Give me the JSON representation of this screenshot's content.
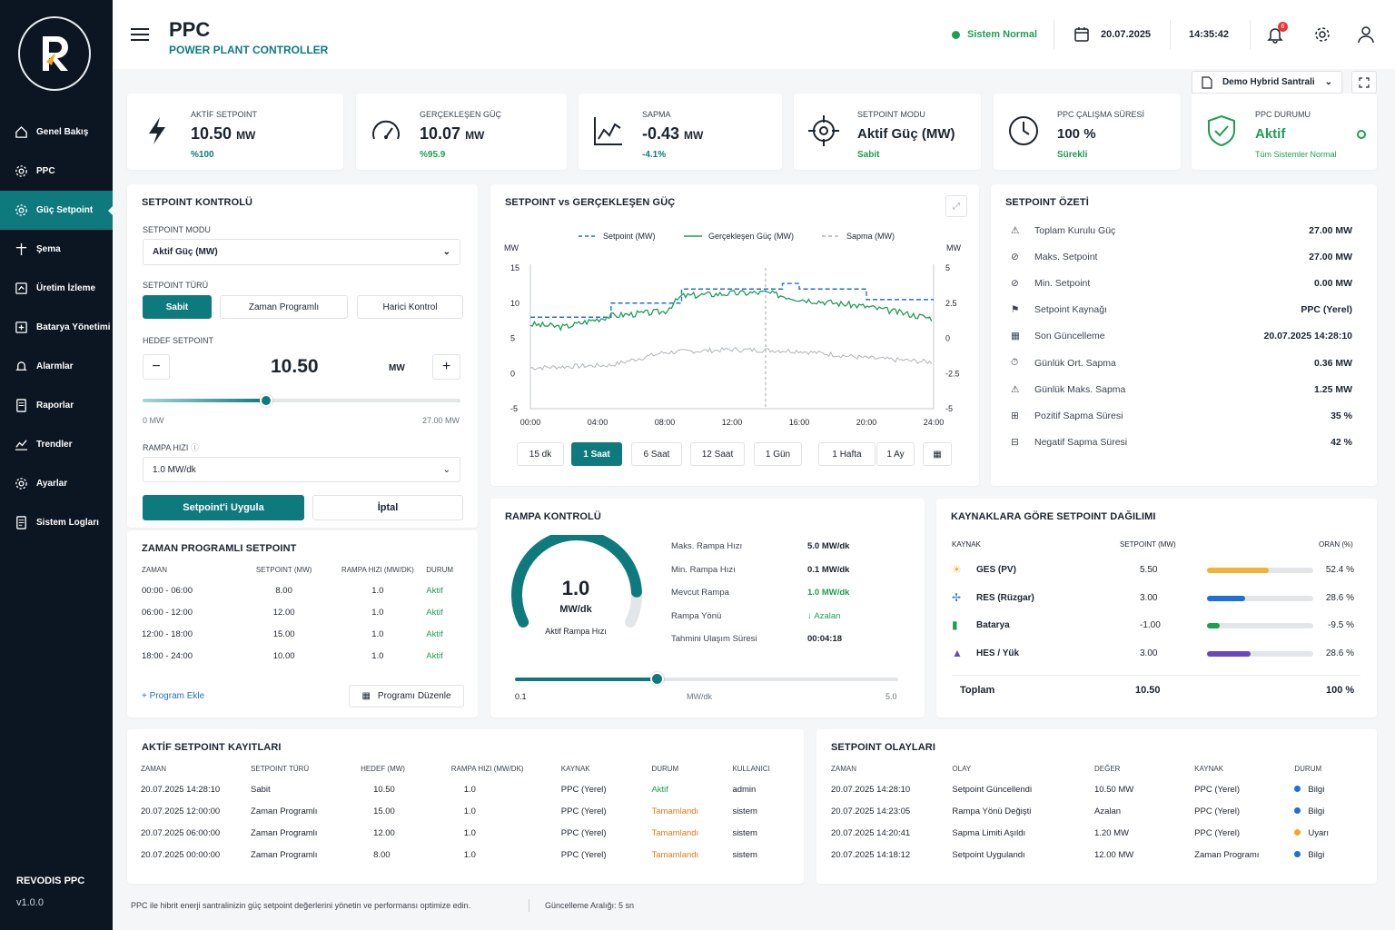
{
  "sidebar": {
    "items": [
      {
        "label": "Genel Bakış",
        "icon": "home-icon"
      },
      {
        "label": "PPC",
        "icon": "gear-icon"
      },
      {
        "label": "Güç Setpoint",
        "icon": "setpoint-icon"
      },
      {
        "label": "Şema",
        "icon": "schema-icon"
      },
      {
        "label": "Üretim İzleme",
        "icon": "monitor-icon"
      },
      {
        "label": "Batarya Yönetimi",
        "icon": "battery-icon"
      },
      {
        "label": "Alarmlar",
        "icon": "bell-icon"
      },
      {
        "label": "Raporlar",
        "icon": "report-icon"
      },
      {
        "label": "Trendler",
        "icon": "trend-icon"
      },
      {
        "label": "Ayarlar",
        "icon": "settings-icon"
      },
      {
        "label": "Sistem Logları",
        "icon": "log-icon"
      }
    ],
    "footer_name": "REVODIS PPC",
    "footer_version": "v1.0.0"
  },
  "header": {
    "title": "PPC",
    "subtitle": "POWER PLANT CONTROLLER",
    "status": "Sistem Normal",
    "date": "20.07.2025",
    "time": "14:35:42",
    "notif_count": "6",
    "plant": "Demo Hybrid Santrali"
  },
  "kpis": [
    {
      "label": "AKTİF SETPOINT",
      "value": "10.50",
      "unit": "MW",
      "sub": "%100"
    },
    {
      "label": "GERÇEKLEŞEN GÜÇ",
      "value": "10.07",
      "unit": "MW",
      "sub": "%95.9"
    },
    {
      "label": "SAPMA",
      "value": "-0.43",
      "unit": "MW",
      "sub": "-4.1%"
    },
    {
      "label": "SETPOINT MODU",
      "value": "Aktif Güç (MW)",
      "unit": "",
      "sub": "Sabit"
    },
    {
      "label": "PPC ÇALIŞMA SÜRESİ",
      "value": "100 %",
      "unit": "",
      "sub": "Sürekli"
    },
    {
      "label": "PPC DURUMU",
      "value": "Aktif",
      "unit": "",
      "sub": "Tüm Sistemler Normal"
    }
  ],
  "control": {
    "title": "SETPOINT KONTROLÜ",
    "mode_label": "SETPOINT MODU",
    "mode_value": "Aktif Güç (MW)",
    "type_label": "SETPOINT TÜRÜ",
    "types": [
      "Sabit",
      "Zaman Programlı",
      "Harici Kontrol"
    ],
    "target_label": "HEDEF SETPOINT",
    "target_value": "10.50",
    "target_unit": "MW",
    "min": "0 MW",
    "max": "27.00 MW",
    "slider_fraction": 0.389,
    "ramp_label": "RAMPA HIZI",
    "ramp_value": "1.0 MW/dk",
    "apply": "Setpoint'i Uygula",
    "cancel": "İptal"
  },
  "schedule": {
    "title": "ZAMAN PROGRAMLI SETPOINT",
    "headers": [
      "ZAMAN",
      "SETPOINT (MW)",
      "RAMPA HIZI (MW/dk)",
      "DURUM"
    ],
    "rows": [
      [
        "00:00 - 06:00",
        "8.00",
        "1.0",
        "Aktif"
      ],
      [
        "06:00 - 12:00",
        "12.00",
        "1.0",
        "Aktif"
      ],
      [
        "12:00 - 18:00",
        "15.00",
        "1.0",
        "Aktif"
      ],
      [
        "18:00 - 24:00",
        "10.00",
        "1.0",
        "Aktif"
      ]
    ],
    "add": "Program Ekle",
    "edit": "Programı Düzenle"
  },
  "chart": {
    "title": "SETPOINT vs GERÇEKLEŞEN GÜÇ",
    "legend": [
      "Setpoint (MW)",
      "Gerçekleşen Güç (MW)",
      "Sapma (MW)"
    ],
    "yleft_label": "MW",
    "yright_label": "MW",
    "yleft_ticks": [
      "15",
      "10",
      "5",
      "0",
      "-5"
    ],
    "yright_ticks": [
      "5",
      "2.5",
      "0",
      "-2.5",
      "-5"
    ],
    "x_ticks": [
      "00:00",
      "04:00",
      "08:00",
      "12:00",
      "16:00",
      "20:00",
      "24:00"
    ],
    "ranges": [
      "15 dk",
      "1 Saat",
      "6 Saat",
      "12 Saat",
      "1 Gün",
      "1 Hafta",
      "1 Ay"
    ]
  },
  "chart_data": {
    "type": "line",
    "title": "SETPOINT vs GERÇEKLEŞEN GÜÇ",
    "x": [
      "00:00",
      "04:00",
      "08:00",
      "12:00",
      "16:00",
      "20:00",
      "24:00"
    ],
    "series": [
      {
        "name": "Setpoint (MW)",
        "axis": "left",
        "steps": [
          [
            0,
            8
          ],
          [
            4.8,
            10
          ],
          [
            9,
            12
          ],
          [
            15,
            12.8
          ],
          [
            16,
            12
          ],
          [
            20,
            10.5
          ],
          [
            24,
            10.5
          ]
        ]
      },
      {
        "name": "Gerçekleşen Güç (MW)",
        "axis": "left",
        "points": [
          [
            0,
            7
          ],
          [
            2,
            6.6
          ],
          [
            4.8,
            8.2
          ],
          [
            8,
            8.8
          ],
          [
            9,
            11
          ],
          [
            12,
            11.4
          ],
          [
            14,
            11.5
          ],
          [
            16,
            10.6
          ],
          [
            20,
            9.5
          ],
          [
            24,
            7.8
          ]
        ]
      },
      {
        "name": "Sapma (MW)",
        "axis": "right",
        "points": [
          [
            0,
            -2.1
          ],
          [
            4.8,
            -1.9
          ],
          [
            8,
            -1
          ],
          [
            12,
            -0.8
          ],
          [
            16,
            -0.9
          ],
          [
            20,
            -1.4
          ],
          [
            24,
            -1.7
          ]
        ]
      }
    ],
    "ylim_left": [
      -5,
      15
    ],
    "ylim_right": [
      -5,
      5
    ]
  },
  "summary": {
    "title": "SETPOINT ÖZETİ",
    "rows": [
      [
        "Toplam Kurulu Güç",
        "27.00 MW"
      ],
      [
        "Maks. Setpoint",
        "27.00 MW"
      ],
      [
        "Min. Setpoint",
        "0.00 MW"
      ],
      [
        "Setpoint Kaynağı",
        "PPC (Yerel)"
      ],
      [
        "Son Güncelleme",
        "20.07.2025 14:28:10"
      ],
      [
        "Günlük Ort. Sapma",
        "0.36 MW"
      ],
      [
        "Günlük Maks. Sapma",
        "1.25 MW"
      ],
      [
        "Pozitif Sapma Süresi",
        "35 %"
      ],
      [
        "Negatif Sapma Süresi",
        "42 %"
      ]
    ]
  },
  "ramp": {
    "title": "RAMPA KONTROLÜ",
    "gauge_value": "1.0",
    "gauge_unit": "MW/dk",
    "gauge_label": "Aktif Rampa Hızı",
    "gauge_fraction": 0.18,
    "rows": [
      [
        "Maks. Rampa Hızı",
        "5.0 MW/dk"
      ],
      [
        "Min. Rampa Hızı",
        "0.1 MW/dk"
      ],
      [
        "Mevcut Rampa",
        "1.0 MW/dk"
      ],
      [
        "Rampa Yönü",
        "Azalan"
      ],
      [
        "Tahmini Ulaşım Süresi",
        "00:04:18"
      ]
    ],
    "min": "0.1",
    "unit": "MW/dk",
    "max": "5.0",
    "slider_fraction": 0.37
  },
  "sources": {
    "title": "KAYNAKLARA GÖRE SETPOINT DAĞILIMI",
    "headers": [
      "KAYNAK",
      "SETPOINT (MW)",
      "ORAN (%)"
    ],
    "rows": [
      {
        "name": "GES (PV)",
        "value": "5.50",
        "pct": "52.4 %",
        "frac": 0.58,
        "color": "#f2b233"
      },
      {
        "name": "RES (Rüzgar)",
        "value": "3.00",
        "pct": "28.6 %",
        "frac": 0.36,
        "color": "#1e6fd6"
      },
      {
        "name": "Batarya",
        "value": "-1.00",
        "pct": "-9.5 %",
        "frac": 0.12,
        "color": "#1f9d55"
      },
      {
        "name": "HES / Yük",
        "value": "3.00",
        "pct": "28.6 %",
        "frac": 0.41,
        "color": "#6b46c1"
      }
    ],
    "total_label": "Toplam",
    "total_value": "10.50",
    "total_pct": "100 %"
  },
  "log": {
    "title": "AKTİF SETPOINT KAYITLARI",
    "headers": [
      "ZAMAN",
      "SETPOINT TÜRÜ",
      "HEDEF (MW)",
      "RAMPA HIZI (MW/dk)",
      "KAYNAK",
      "DURUM",
      "KULLANICI"
    ],
    "rows": [
      [
        "20.07.2025 14:28:10",
        "Sabit",
        "10.50",
        "1.0",
        "PPC (Yerel)",
        "Aktif",
        "admin"
      ],
      [
        "20.07.2025 12:00:00",
        "Zaman Programlı",
        "15.00",
        "1.0",
        "PPC (Yerel)",
        "Tamamlandı",
        "sistem"
      ],
      [
        "20.07.2025 06:00:00",
        "Zaman Programlı",
        "12.00",
        "1.0",
        "PPC (Yerel)",
        "Tamamlandı",
        "sistem"
      ],
      [
        "20.07.2025 00:00:00",
        "Zaman Programlı",
        "8.00",
        "1.0",
        "PPC (Yerel)",
        "Tamamlandı",
        "sistem"
      ]
    ]
  },
  "events": {
    "title": "SETPOINT OLAYLARI",
    "headers": [
      "ZAMAN",
      "OLAY",
      "DEĞER",
      "KAYNAK",
      "DURUM"
    ],
    "rows": [
      [
        "20.07.2025 14:28:10",
        "Setpoint Güncellendi",
        "10.50 MW",
        "PPC (Yerel)",
        "Bilgi",
        "#1e6fd6"
      ],
      [
        "20.07.2025 14:23:05",
        "Rampa Yönü Değişti",
        "Azalan",
        "PPC (Yerel)",
        "Bilgi",
        "#1e6fd6"
      ],
      [
        "20.07.2025 14:20:41",
        "Sapma Limiti Aşıldı",
        "1.20 MW",
        "PPC (Yerel)",
        "Uyarı",
        "#f2a623"
      ],
      [
        "20.07.2025 14:18:12",
        "Setpoint Uygulandı",
        "12.00 MW",
        "Zaman Programı",
        "Bilgi",
        "#1e6fd6"
      ]
    ]
  },
  "footer": {
    "desc": "PPC ile hibrit enerji santralinizin güç setpoint değerlerini yönetin ve performansı optimize edin.",
    "refresh": "Güncelleme Aralığı: 5 sn"
  }
}
